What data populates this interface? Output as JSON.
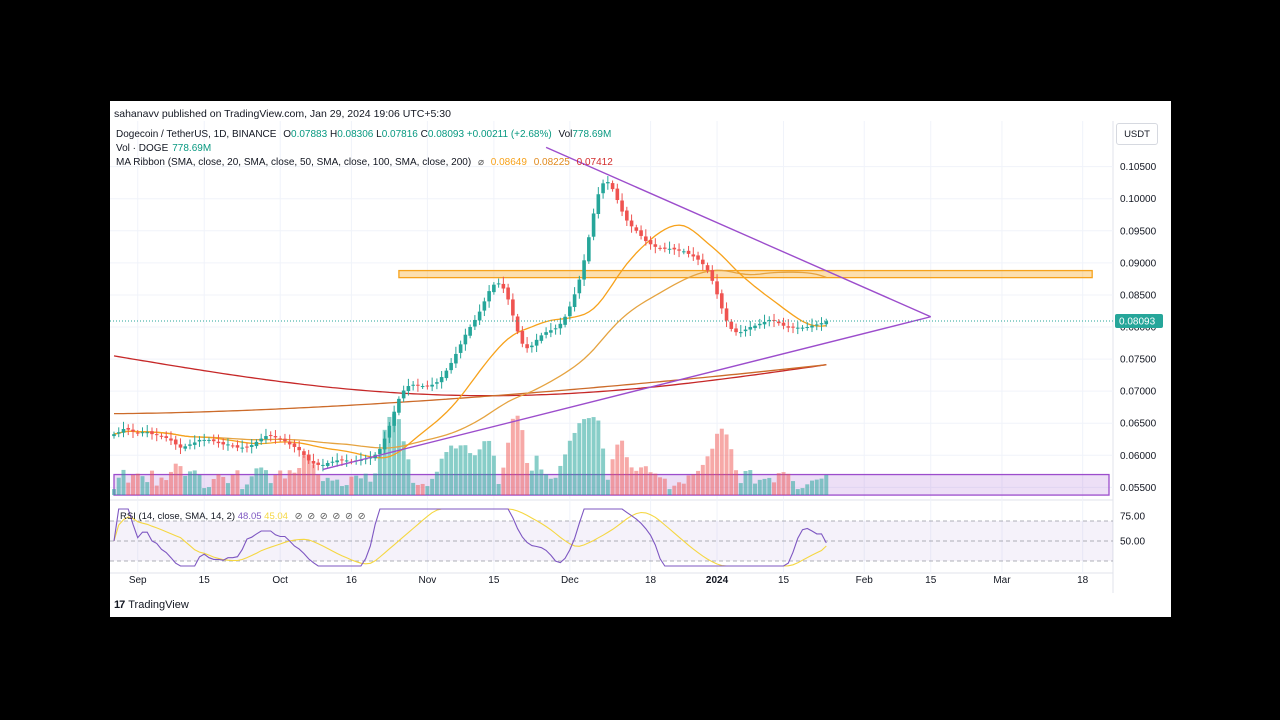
{
  "publisher_line": "sahanavv published on TradingView.com, Jan 29, 2024 19:06 UTC+5:30",
  "symbol_line": {
    "name": "Dogecoin / TetherUS, 1D, BINANCE",
    "open_label": "O",
    "open": "0.07883",
    "high_label": "H",
    "high": "0.08306",
    "low_label": "L",
    "low": "0.07816",
    "close_label": "C",
    "close": "0.08093",
    "change": "+0.00211 (+2.68%)",
    "vol_label": "Vol",
    "vol": "778.69M"
  },
  "vol_line": {
    "label": "Vol · DOGE",
    "value": "778.69M"
  },
  "ma_line": {
    "label": "MA Ribbon (SMA, close, 20, SMA, close, 50, SMA, close, 100, SMA, close, 200)",
    "eye": "⌀",
    "v1": "0.08649",
    "v2": "0.08225",
    "v3": "0.07412"
  },
  "rsi_line": {
    "label": "RSI (14, close, SMA, 14, 2)",
    "rsi": "48.05",
    "sma": "45.04",
    "icons": "⊘ ⊘ ⊘ ⊘ ⊘ ⊘"
  },
  "currency": "USDT",
  "brand": {
    "logo": "17",
    "name": "TradingView"
  },
  "colors": {
    "up": "#26a69a",
    "down": "#ef5350",
    "ma20": "#f7a21b",
    "ma50": "#e5a340",
    "ma100": "#cc6b2a",
    "ma200": "#c62828",
    "trendline": "#9c4dcc",
    "rsi": "#7e57c2",
    "rsi_sma": "#f5d742"
  },
  "chart_data": {
    "type": "candlestick",
    "y_ticks": [
      "0.10500",
      "0.10000",
      "0.09500",
      "0.09000",
      "0.08500",
      "0.08000",
      "0.07500",
      "0.07000",
      "0.06500",
      "0.06000",
      "0.05500"
    ],
    "ylim": [
      0.0535,
      0.109
    ],
    "last_price": "0.08093",
    "x_ticks": [
      "Sep",
      "15",
      "Oct",
      "16",
      "Nov",
      "15",
      "Dec",
      "18",
      "2024",
      "15",
      "Feb",
      "15",
      "Mar",
      "18"
    ],
    "x_tick_dates": [
      "2023-09-01",
      "2023-09-15",
      "2023-10-01",
      "2023-10-16",
      "2023-11-01",
      "2023-11-15",
      "2023-12-01",
      "2023-12-18",
      "2024-01-01",
      "2024-01-15",
      "2024-02-01",
      "2024-02-15",
      "2024-03-01",
      "2024-03-18"
    ],
    "first_date": "2023-08-27",
    "last_date": "2024-01-29",
    "closes": [
      0.0633,
      0.0636,
      0.0641,
      0.064,
      0.0637,
      0.0634,
      0.0636,
      0.0636,
      0.0633,
      0.0632,
      0.0629,
      0.0627,
      0.0623,
      0.0617,
      0.0612,
      0.0614,
      0.0617,
      0.062,
      0.0624,
      0.0624,
      0.0624,
      0.0622,
      0.0619,
      0.0617,
      0.0617,
      0.0615,
      0.0612,
      0.0612,
      0.0613,
      0.0616,
      0.0621,
      0.0626,
      0.063,
      0.063,
      0.0628,
      0.0625,
      0.0622,
      0.0617,
      0.0613,
      0.0608,
      0.06,
      0.0592,
      0.0587,
      0.0585,
      0.0585,
      0.0588,
      0.059,
      0.0592,
      0.0592,
      0.0592,
      0.059,
      0.0592,
      0.0593,
      0.0595,
      0.0597,
      0.0601,
      0.061,
      0.0626,
      0.0646,
      0.0668,
      0.0688,
      0.0701,
      0.0708,
      0.071,
      0.0709,
      0.0708,
      0.0708,
      0.071,
      0.0714,
      0.0722,
      0.0732,
      0.0744,
      0.0758,
      0.0773,
      0.0788,
      0.08,
      0.0811,
      0.0824,
      0.084,
      0.0856,
      0.0866,
      0.0868,
      0.086,
      0.0843,
      0.0818,
      0.0793,
      0.0774,
      0.0767,
      0.0771,
      0.078,
      0.0787,
      0.0792,
      0.0795,
      0.0798,
      0.0805,
      0.0816,
      0.0832,
      0.0851,
      0.0874,
      0.0904,
      0.094,
      0.0977,
      0.1007,
      0.1024,
      0.1026,
      0.1015,
      0.0998,
      0.098,
      0.0966,
      0.0957,
      0.095,
      0.0942,
      0.0934,
      0.0929,
      0.0925,
      0.0923,
      0.0922,
      0.0922,
      0.0921,
      0.0919,
      0.0918,
      0.0914,
      0.091,
      0.0905,
      0.0898,
      0.0888,
      0.0872,
      0.0851,
      0.0829,
      0.081,
      0.0797,
      0.0792,
      0.0792,
      0.0796,
      0.08,
      0.0802,
      0.0805,
      0.0808,
      0.0811,
      0.081,
      0.0806,
      0.0802,
      0.0799,
      0.0799,
      0.0799,
      0.0799,
      0.08,
      0.0802,
      0.0804,
      0.0806,
      0.0809
    ],
    "ma20": {
      "start": 0.063,
      "end": 0.08649
    },
    "ma50": {
      "start": 0.0625,
      "end": 0.08225
    },
    "ma100": {
      "start": 0.0665,
      "end": 0.07412
    },
    "ma200": {
      "start": 0.0755,
      "end": 0.07412
    },
    "resistance_zone": [
      0.0877,
      0.0888
    ],
    "support_zone": [
      0.0538,
      0.057
    ],
    "triangle": {
      "upper": {
        "from": [
          "2023-11-26",
          0.108
        ],
        "to": [
          "2024-02-15",
          0.0816
        ]
      },
      "lower": {
        "from": [
          "2023-10-10",
          0.0578
        ],
        "to": [
          "2024-02-15",
          0.0816
        ]
      }
    },
    "rsi": {
      "y_ticks": [
        "75.00",
        "50.00"
      ],
      "ylim": [
        20,
        85
      ],
      "bands": [
        70,
        50,
        30
      ],
      "current": 48.05,
      "sma": 45.04
    }
  }
}
